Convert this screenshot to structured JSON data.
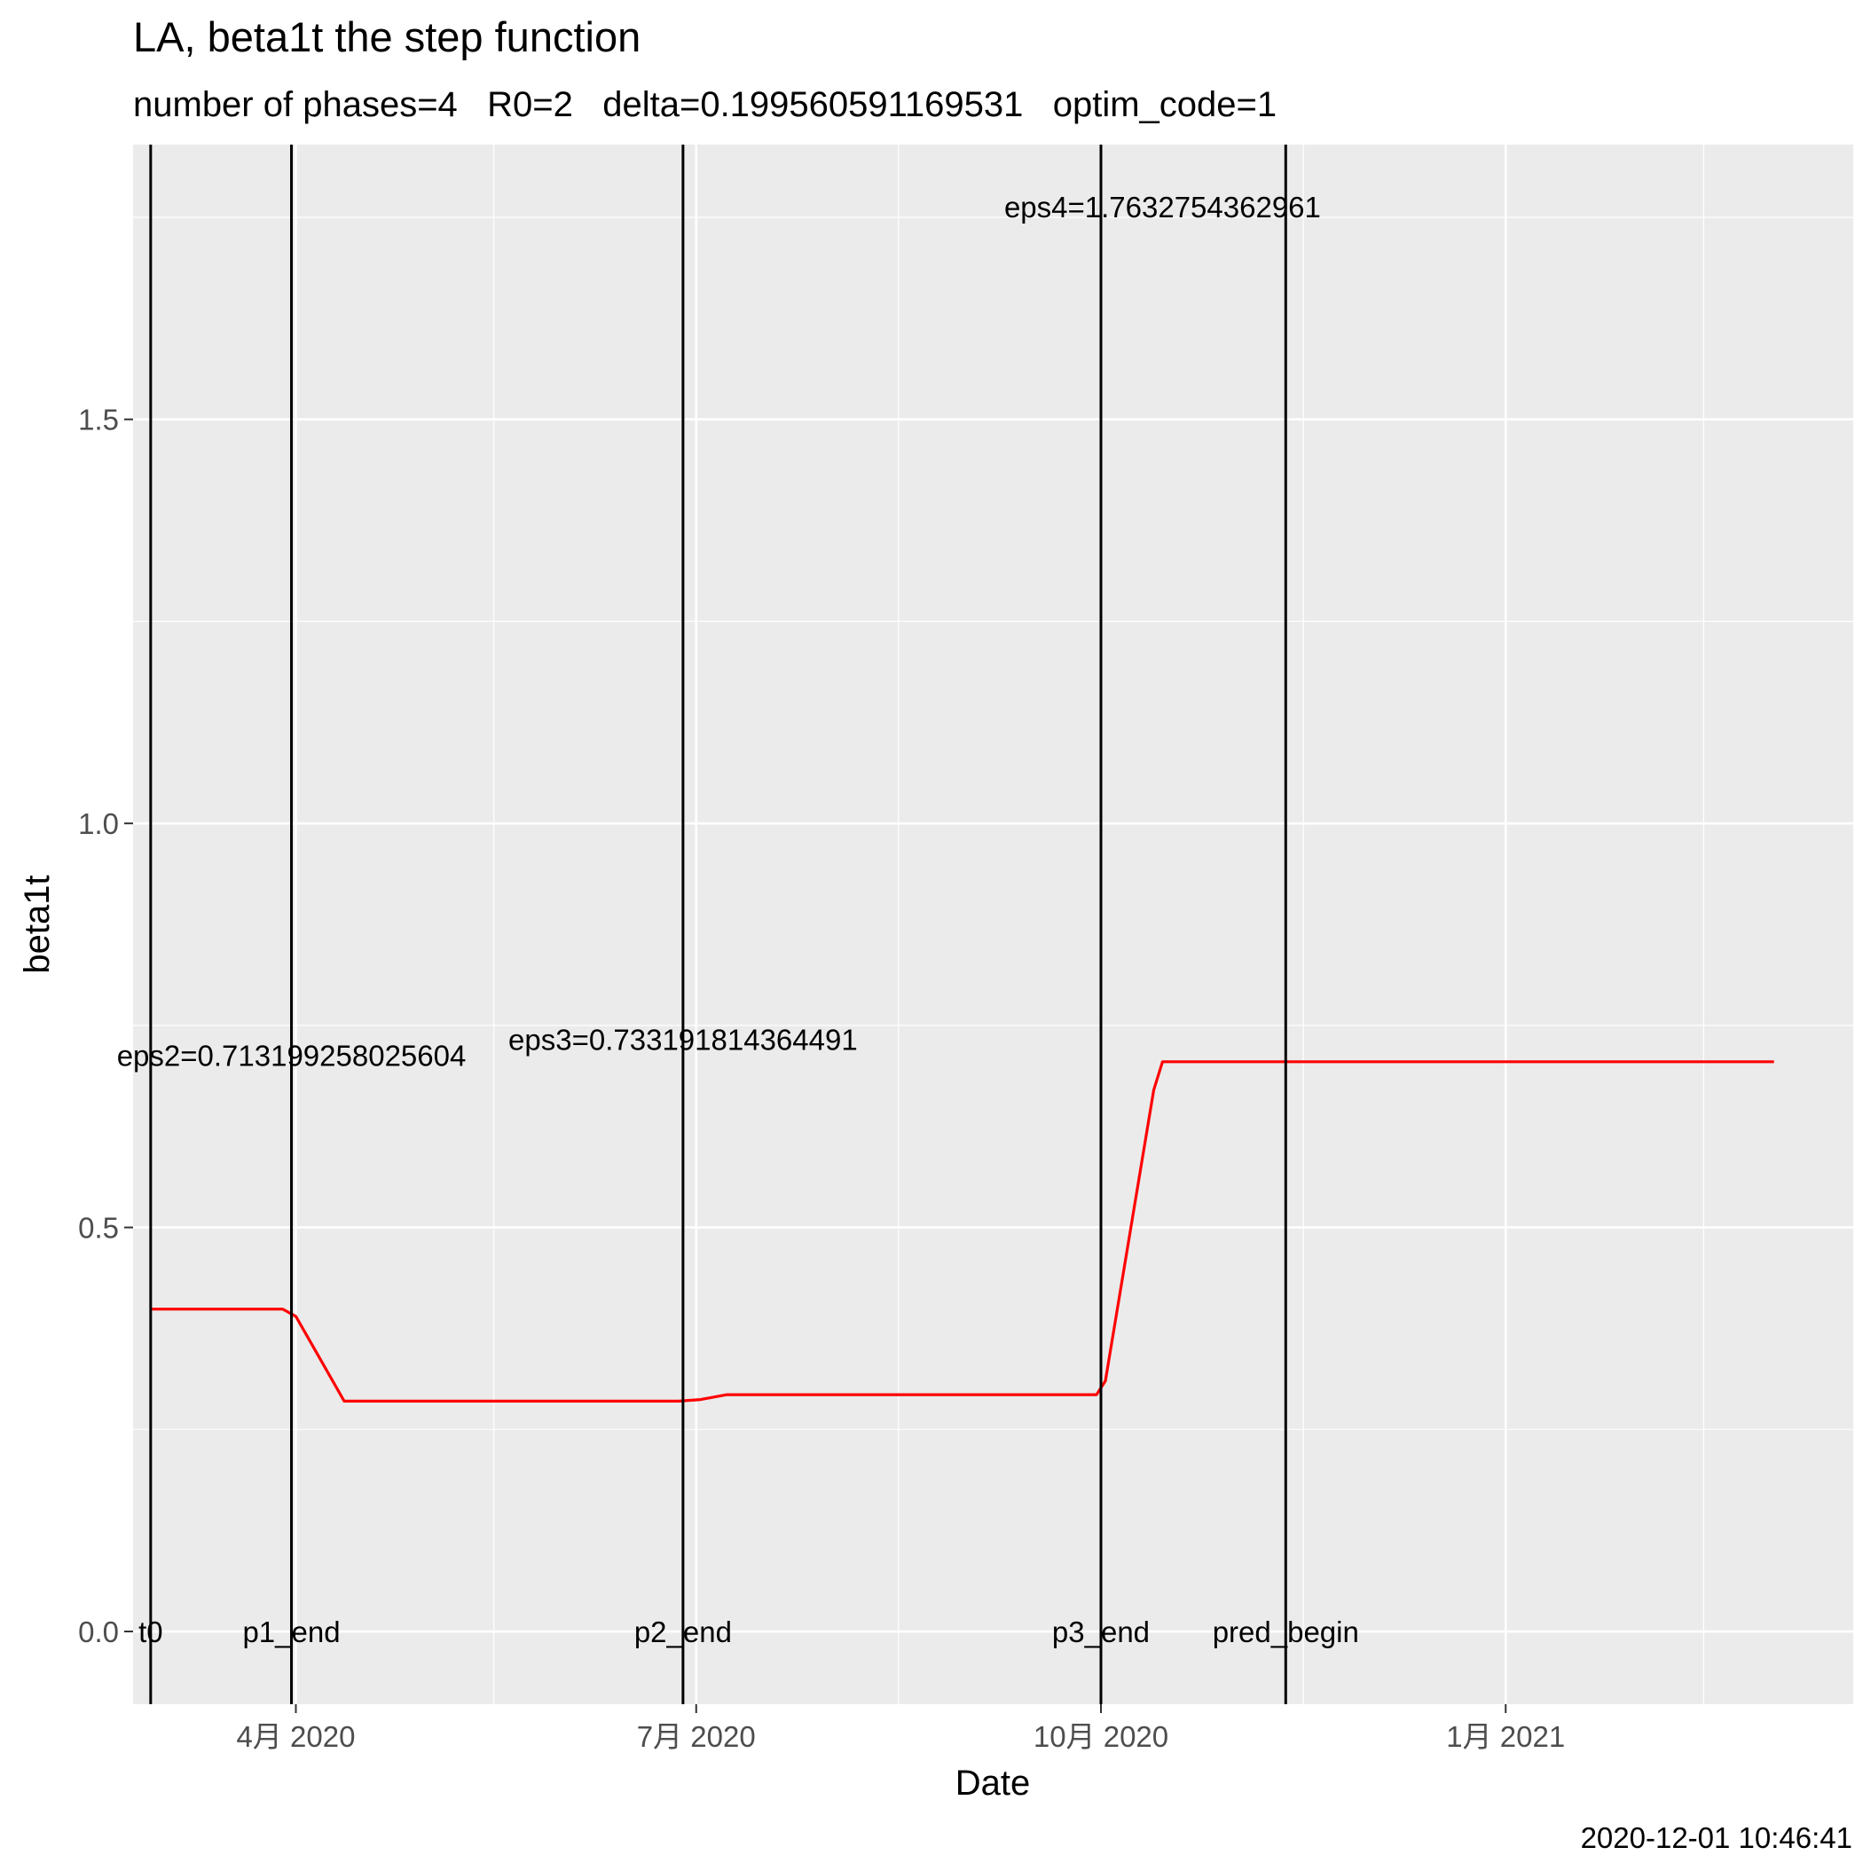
{
  "chart_data": {
    "type": "line",
    "title": "LA, beta1t the step function",
    "subtitle": "number of phases=4   R0=2   delta=0.199560591169531   optim_code=1",
    "xlabel": "Date",
    "ylabel": "beta1t",
    "footer": "2020-12-01 10:46:41",
    "xlim": [
      "2020-02-24",
      "2021-03-21"
    ],
    "ylim": [
      -0.09,
      1.84
    ],
    "y_ticks": [
      0.0,
      0.5,
      1.0,
      1.5
    ],
    "y_tick_labels": [
      "0.0",
      "0.5",
      "1.0",
      "1.5"
    ],
    "x_ticks": [
      "2020-04-01",
      "2020-07-01",
      "2020-10-01",
      "2021-01-01"
    ],
    "x_tick_labels": [
      "4月 2020",
      "7月 2020",
      "10月 2020",
      "1月 2021"
    ],
    "x_minor_ticks": [
      "2020-02-15",
      "2020-05-16",
      "2020-08-16",
      "2020-11-16",
      "2021-02-15"
    ],
    "grid": true,
    "background": "#EBEBEB",
    "series": [
      {
        "color": "#FF0000",
        "x": [
          "2020-02-28",
          "2020-03-29",
          "2020-04-01",
          "2020-04-12",
          "2020-06-27",
          "2020-07-02",
          "2020-07-08",
          "2020-09-30",
          "2020-10-02",
          "2020-10-13",
          "2020-10-15",
          "2021-03-03"
        ],
        "y": [
          0.399,
          0.399,
          0.39,
          0.285,
          0.285,
          0.287,
          0.293,
          0.293,
          0.31,
          0.67,
          0.705,
          0.705
        ]
      }
    ],
    "vlines": [
      {
        "date": "2020-02-28",
        "label": "t0"
      },
      {
        "date": "2020-03-31",
        "label": "p1_end"
      },
      {
        "date": "2020-06-28",
        "label": "p2_end"
      },
      {
        "date": "2020-10-01",
        "label": "p3_end"
      },
      {
        "date": "2020-11-12",
        "label": "pred_begin"
      }
    ],
    "annotations": [
      {
        "text": "eps2=0.713199258025604",
        "x": "2020-03-31",
        "y": 0.713
      },
      {
        "text": "eps3=0.733191814364491",
        "x": "2020-06-28",
        "y": 0.733
      },
      {
        "text": "eps4=1.7632754362961",
        "x": "2020-10-15",
        "y": 1.763
      }
    ]
  }
}
